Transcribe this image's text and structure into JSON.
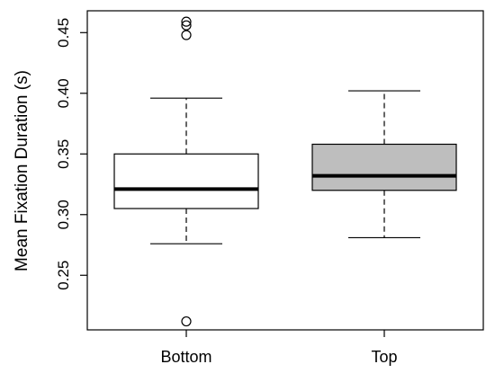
{
  "chart_data": {
    "type": "boxplot",
    "title": "",
    "xlabel": "",
    "ylabel": "Mean Fixation Duration (s)",
    "ylim": [
      0.205,
      0.468
    ],
    "yticks": [
      0.25,
      0.3,
      0.35,
      0.4,
      0.45
    ],
    "ytick_labels": [
      "0.25",
      "0.30",
      "0.35",
      "0.40",
      "0.45"
    ],
    "grid": false,
    "legend": "none",
    "categories": [
      "Bottom",
      "Top"
    ],
    "boxes": [
      {
        "category": "Bottom",
        "fill": "#ffffff",
        "whisker_low": 0.276,
        "q1": 0.305,
        "median": 0.321,
        "q3": 0.35,
        "whisker_high": 0.396,
        "outliers": [
          0.212,
          0.448,
          0.456,
          0.459
        ]
      },
      {
        "category": "Top",
        "fill": "#bebebe",
        "whisker_low": 0.281,
        "q1": 0.32,
        "median": 0.332,
        "q3": 0.358,
        "whisker_high": 0.402,
        "outliers": []
      }
    ]
  }
}
